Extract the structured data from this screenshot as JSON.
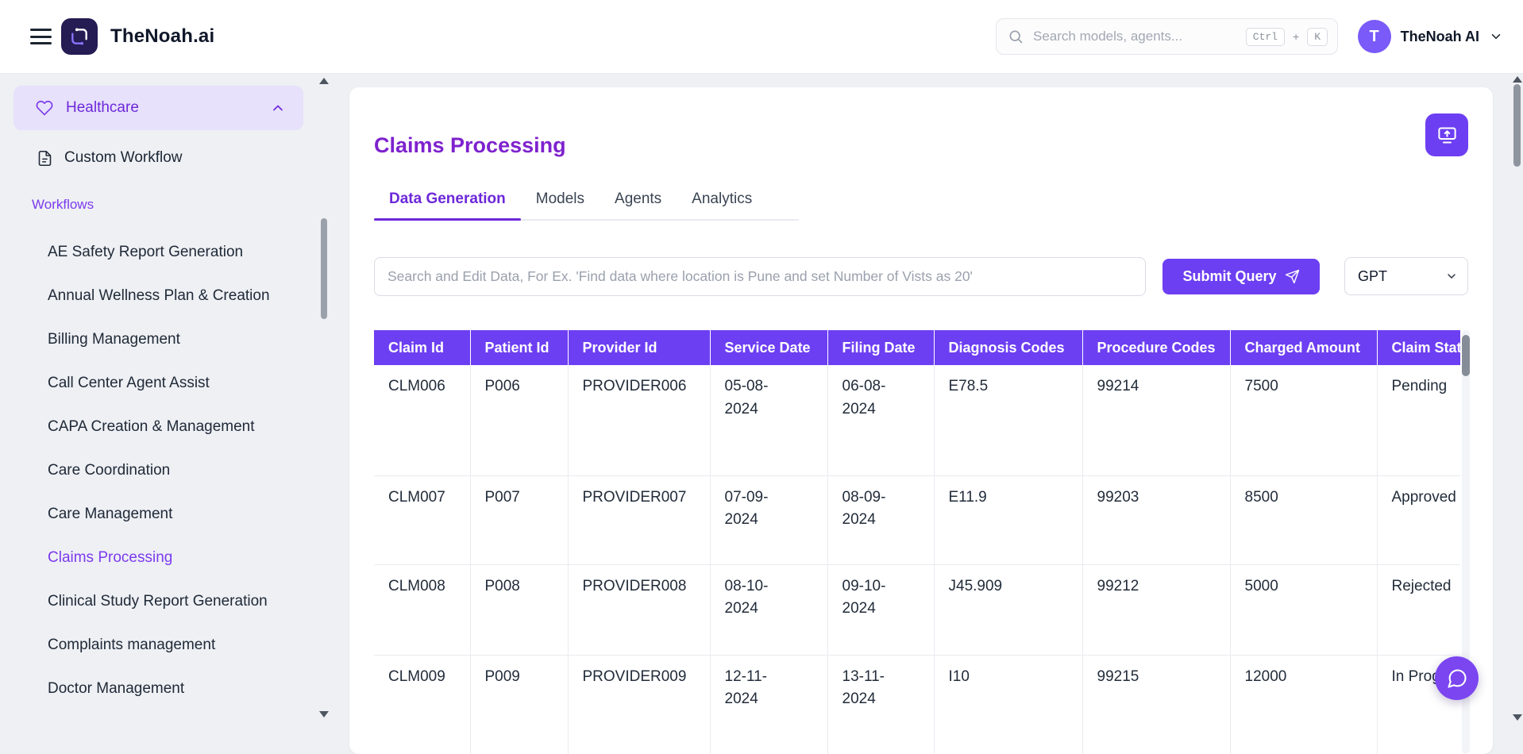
{
  "colors": {
    "primary_purple": "#6d3ff2",
    "tab_active_purple": "#6d28d9",
    "title_purple": "#7e22ce",
    "sidebar_accent_purple": "#7c3aed",
    "sidebar_active_bg": "#e7e1fb",
    "avatar_purple": "#7a5af8"
  },
  "header": {
    "brand": "TheNoah.ai",
    "search_placeholder": "Search models, agents...",
    "shortcut": {
      "key1": "Ctrl",
      "plus": "+",
      "key2": "K"
    },
    "user_initial": "T",
    "user_name": "TheNoah AI"
  },
  "sidebar": {
    "category_label": "Healthcare",
    "custom_workflow_label": "Custom Workflow",
    "section_label": "Workflows",
    "items": [
      {
        "label": "AE Safety Report Generation",
        "active": false
      },
      {
        "label": "Annual Wellness Plan & Creation",
        "active": false
      },
      {
        "label": "Billing Management",
        "active": false
      },
      {
        "label": "Call Center Agent Assist",
        "active": false
      },
      {
        "label": "CAPA Creation & Management",
        "active": false
      },
      {
        "label": "Care Coordination",
        "active": false
      },
      {
        "label": "Care Management",
        "active": false
      },
      {
        "label": "Claims Processing",
        "active": true
      },
      {
        "label": "Clinical Study Report Generation",
        "active": false
      },
      {
        "label": "Complaints management",
        "active": false
      },
      {
        "label": "Doctor Management",
        "active": false
      }
    ]
  },
  "main": {
    "title": "Claims Processing",
    "tabs": [
      {
        "label": "Data Generation",
        "active": true
      },
      {
        "label": "Models",
        "active": false
      },
      {
        "label": "Agents",
        "active": false
      },
      {
        "label": "Analytics",
        "active": false
      }
    ],
    "query_placeholder": "Search and Edit Data, For Ex. 'Find data where location is Pune and set Number of Vists as 20'",
    "submit_label": "Submit Query",
    "model_selected": "GPT",
    "table": {
      "columns": [
        "Claim Id",
        "Patient Id",
        "Provider Id",
        "Service Date",
        "Filing Date",
        "Diagnosis Codes",
        "Procedure Codes",
        "Charged Amount",
        "Claim Status"
      ],
      "rows": [
        [
          "CLM006",
          "P006",
          "PROVIDER006",
          "05-08-2024",
          "06-08-2024",
          "E78.5",
          "99214",
          "7500",
          "Pending"
        ],
        [
          "CLM007",
          "P007",
          "PROVIDER007",
          "07-09-2024",
          "08-09-2024",
          "E11.9",
          "99203",
          "8500",
          "Approved"
        ],
        [
          "CLM008",
          "P008",
          "PROVIDER008",
          "08-10-2024",
          "09-10-2024",
          "J45.909",
          "99212",
          "5000",
          "Rejected"
        ],
        [
          "CLM009",
          "P009",
          "PROVIDER009",
          "12-11-2024",
          "13-11-2024",
          "I10",
          "99215",
          "12000",
          "In Progress"
        ]
      ]
    }
  }
}
